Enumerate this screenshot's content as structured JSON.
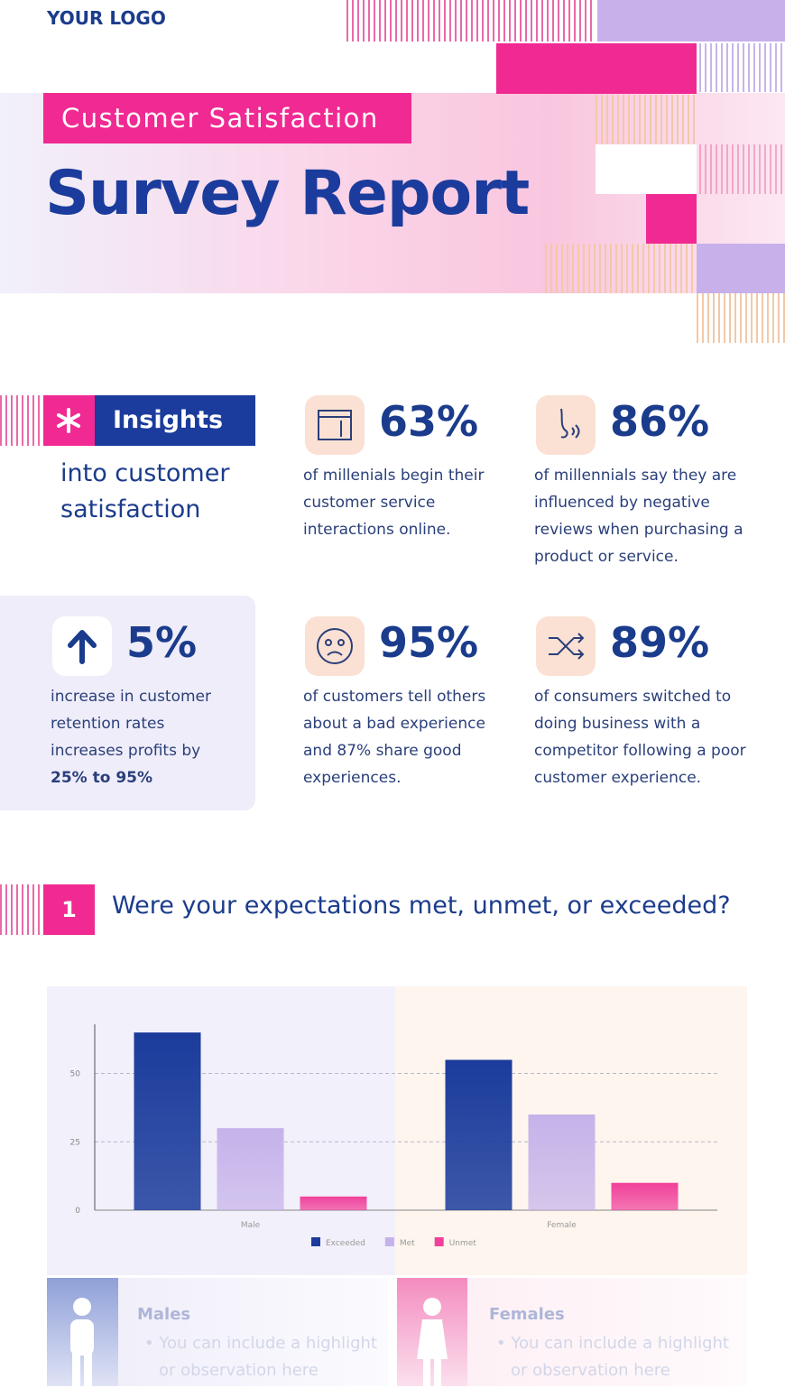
{
  "header": {
    "logo": "YOUR LOGO",
    "subtitle": "Customer Satisfaction",
    "title": "Survey Report"
  },
  "insights": {
    "label": "Insights",
    "caption": "into customer satisfaction",
    "stats": [
      {
        "value": "63%",
        "text": "of millenials begin their customer service interactions online."
      },
      {
        "value": "86%",
        "text": "of millennials say they are influenced by negative reviews when purchasing a product or service."
      },
      {
        "value": "5%",
        "text": "increase in customer retention rates increases profits by",
        "highlight": "25% to 95%"
      },
      {
        "value": "95%",
        "text": "of customers tell others about a bad experience and 87% share good experiences."
      },
      {
        "value": "89%",
        "text": "of consumers switched to doing business with a competitor following a poor customer experience."
      }
    ]
  },
  "section": {
    "number": "1",
    "question": "Were your expectations met, unmet, or exceeded?"
  },
  "chart_data": {
    "type": "bar",
    "categories": [
      "Male",
      "Female"
    ],
    "series": [
      {
        "name": "Exceeded",
        "color": "#1b3c9c",
        "values": [
          65,
          55
        ]
      },
      {
        "name": "Met",
        "color": "#c5b2ea",
        "values": [
          30,
          35
        ]
      },
      {
        "name": "Unmet",
        "color": "#f1409a",
        "values": [
          5,
          10
        ]
      }
    ],
    "ylim": [
      0,
      68
    ],
    "yticks": [
      0,
      25,
      50
    ],
    "grid": true,
    "legend": "bottom"
  },
  "cards": [
    {
      "title": "Males",
      "text": "You can include a highlight or observation here"
    },
    {
      "title": "Females",
      "text": "You can include a highlight or observation here"
    }
  ]
}
